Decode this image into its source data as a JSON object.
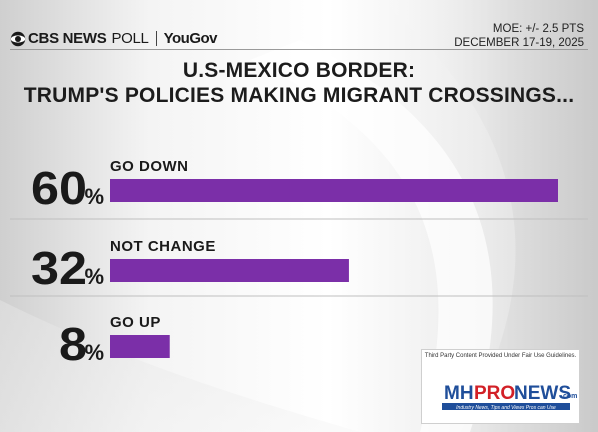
{
  "header": {
    "brand": "CBS NEWS",
    "poll": "POLL",
    "partner": "YouGov",
    "moe": "MOE: +/- 2.5 PTS",
    "dates": "DECEMBER 17-19, 2025"
  },
  "title_line1": "U.S-MEXICO BORDER:",
  "title_line2": "TRUMP'S POLICIES MAKING MIGRANT CROSSINGS...",
  "percent_sign": "%",
  "chart_data": {
    "type": "bar",
    "orientation": "horizontal",
    "categories": [
      "GO DOWN",
      "NOT CHANGE",
      "GO UP"
    ],
    "values": [
      60,
      32,
      8
    ],
    "value_labels": [
      "60",
      "32",
      "8"
    ],
    "xlim": [
      0,
      60
    ],
    "grid": false,
    "bar_color": "#7b2fa8"
  },
  "watermark": {
    "notice": "Third Party Content Provided Under Fair Use Guidelines.",
    "logo_mh": "MH",
    "logo_pro": "PRO",
    "logo_news": "NEWS",
    "logo_com": ".com",
    "tagline": "Industry News, Tips and Views Pros can Use"
  }
}
